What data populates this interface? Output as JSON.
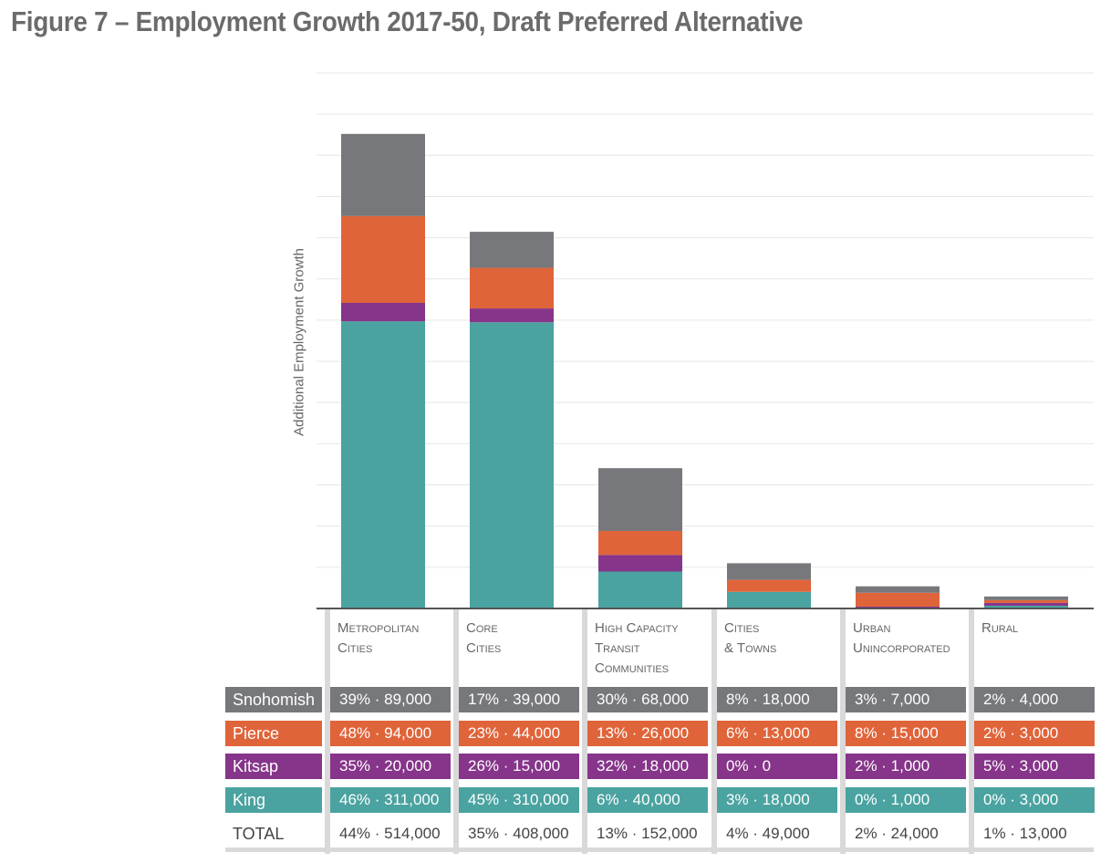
{
  "title": "Figure 7 – Employment Growth 2017-50, Draft Preferred Alternative",
  "colors": {
    "Snohomish": "#77787b",
    "Pierce": "#e0643a",
    "Kitsap": "#86358a",
    "King": "#4aa3a0",
    "TOTAL": "#ffffff"
  },
  "chart_data": {
    "type": "bar",
    "stacked": true,
    "ylabel": "Additional Employment Growth",
    "ylim": [
      0,
      580000
    ],
    "grid": true,
    "categories": [
      "Metropolitan Cities",
      "Core Cities",
      "High Capacity Transit Communities",
      "Cities & Towns",
      "Urban Unincorporated",
      "Rural"
    ],
    "series": [
      {
        "name": "King",
        "values": [
          311000,
          310000,
          40000,
          18000,
          1000,
          3000
        ]
      },
      {
        "name": "Kitsap",
        "values": [
          20000,
          15000,
          18000,
          0,
          1000,
          3000
        ]
      },
      {
        "name": "Pierce",
        "values": [
          94000,
          44000,
          26000,
          13000,
          15000,
          3000
        ]
      },
      {
        "name": "Snohomish",
        "values": [
          89000,
          39000,
          68000,
          18000,
          7000,
          4000
        ]
      }
    ]
  },
  "category_lines": [
    [
      "Metropolitan",
      "Cities"
    ],
    [
      "Core",
      "Cities"
    ],
    [
      "High Capacity",
      "Transit",
      "Communities"
    ],
    [
      "Cities",
      "& Towns"
    ],
    [
      "Urban",
      "Unincorporated"
    ],
    [
      "Rural"
    ]
  ],
  "table": [
    {
      "label": "Snohomish",
      "cells": [
        "39% · 89,000",
        "17% · 39,000",
        "30% · 68,000",
        "8% · 18,000",
        "3% · 7,000",
        "2% · 4,000"
      ]
    },
    {
      "label": "Pierce",
      "cells": [
        "48% · 94,000",
        "23% · 44,000",
        "13% · 26,000",
        "6% · 13,000",
        "8% · 15,000",
        "2% · 3,000"
      ]
    },
    {
      "label": "Kitsap",
      "cells": [
        "35% · 20,000",
        "26% · 15,000",
        "32% · 18,000",
        "0% · 0",
        "2% · 1,000",
        "5% · 3,000"
      ]
    },
    {
      "label": "King",
      "cells": [
        "46% · 311,000",
        "45% · 310,000",
        "6% · 40,000",
        "3% · 18,000",
        "0% · 1,000",
        "0% · 3,000"
      ]
    },
    {
      "label": "TOTAL",
      "cells": [
        "44% · 514,000",
        "35% · 408,000",
        "13% · 152,000",
        "4% · 49,000",
        "2% · 24,000",
        "1% · 13,000"
      ]
    }
  ]
}
